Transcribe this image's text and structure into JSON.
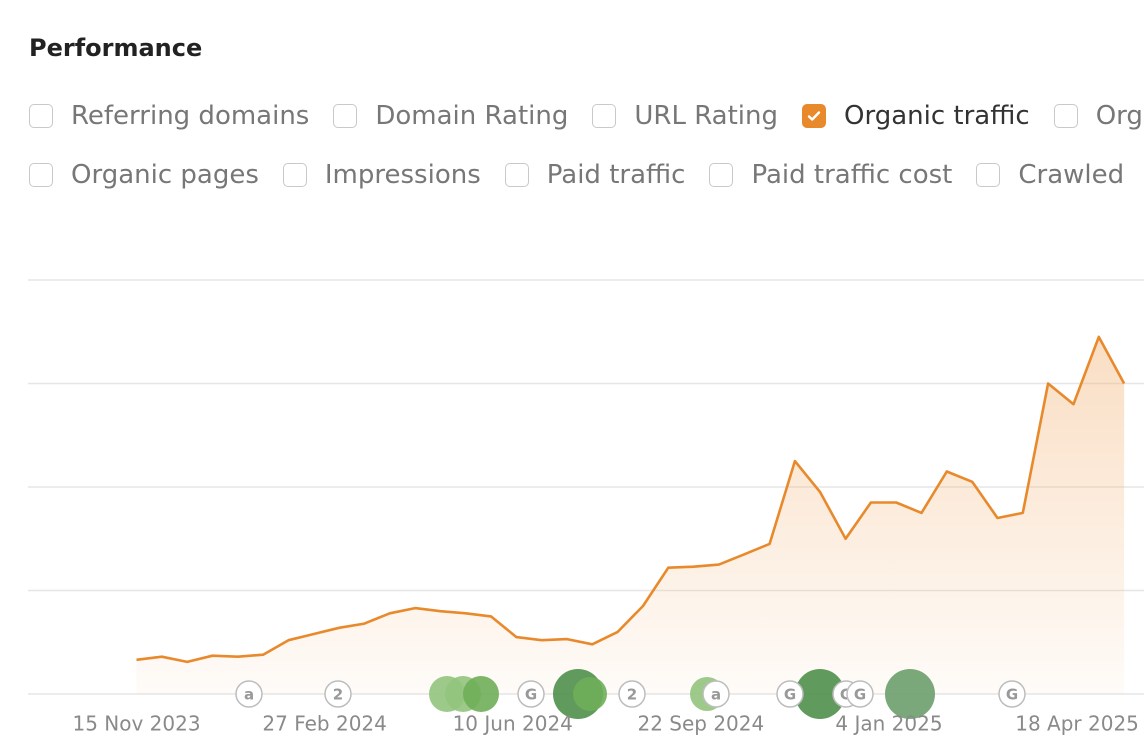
{
  "header": {
    "title": "Performance"
  },
  "metrics": [
    [
      {
        "label": "Referring domains",
        "checked": false
      },
      {
        "label": "Domain Rating",
        "checked": false
      },
      {
        "label": "URL Rating",
        "checked": false
      },
      {
        "label": "Organic traffic",
        "checked": true
      },
      {
        "label": "Org",
        "checked": false
      }
    ],
    [
      {
        "label": "Organic pages",
        "checked": false
      },
      {
        "label": "Impressions",
        "checked": false
      },
      {
        "label": "Paid traffic",
        "checked": false
      },
      {
        "label": "Paid traffic cost",
        "checked": false
      },
      {
        "label": "Crawled",
        "checked": false
      }
    ]
  ],
  "timeline_events": [
    "a",
    "2",
    "G",
    "2",
    "a",
    "G",
    "G",
    "G",
    "G"
  ],
  "chart_data": {
    "type": "line",
    "color": "#e8892c",
    "grid": true,
    "x": [
      "2023-11-15",
      "2023-11-29",
      "2023-12-13",
      "2023-12-27",
      "2024-01-10",
      "2024-01-24",
      "2024-02-07",
      "2024-02-21",
      "2024-03-06",
      "2024-03-20",
      "2024-04-03",
      "2024-04-17",
      "2024-05-01",
      "2024-05-15",
      "2024-05-29",
      "2024-06-12",
      "2024-06-26",
      "2024-07-10",
      "2024-07-24",
      "2024-08-07",
      "2024-08-21",
      "2024-09-04",
      "2024-09-18",
      "2024-10-02",
      "2024-10-16",
      "2024-10-30",
      "2024-11-13",
      "2024-11-27",
      "2024-12-11",
      "2024-12-25",
      "2025-01-08",
      "2025-01-22",
      "2025-02-05",
      "2025-02-19",
      "2025-03-05",
      "2025-03-19",
      "2025-04-02",
      "2025-04-16",
      "2025-04-30",
      "2025-05-14"
    ],
    "values": [
      0.33,
      0.36,
      0.31,
      0.37,
      0.36,
      0.38,
      0.52,
      0.58,
      0.64,
      0.68,
      0.78,
      0.83,
      0.8,
      0.78,
      0.75,
      0.55,
      0.52,
      0.53,
      0.48,
      0.6,
      0.85,
      1.22,
      1.23,
      1.25,
      1.35,
      1.45,
      2.25,
      1.95,
      1.5,
      1.85,
      1.85,
      1.75,
      2.15,
      2.05,
      1.7,
      1.75,
      3.0,
      2.8,
      3.45,
      3.0
    ],
    "xlim": [
      "2023-09-16",
      "2025-05-25"
    ],
    "xticks": [
      {
        "value": "2023-11-15",
        "label": "15 Nov 2023"
      },
      {
        "value": "2024-02-27",
        "label": "27 Feb 2024"
      },
      {
        "value": "2024-06-10",
        "label": "10 Jun 2024"
      },
      {
        "value": "2024-09-22",
        "label": "22 Sep 2024"
      },
      {
        "value": "2025-01-04",
        "label": "4 Jan 2025"
      },
      {
        "value": "2025-04-18",
        "label": "18 Apr 2025"
      }
    ],
    "ylim": [
      0,
      4
    ],
    "yticks": [
      0,
      1,
      2,
      3,
      4
    ]
  }
}
